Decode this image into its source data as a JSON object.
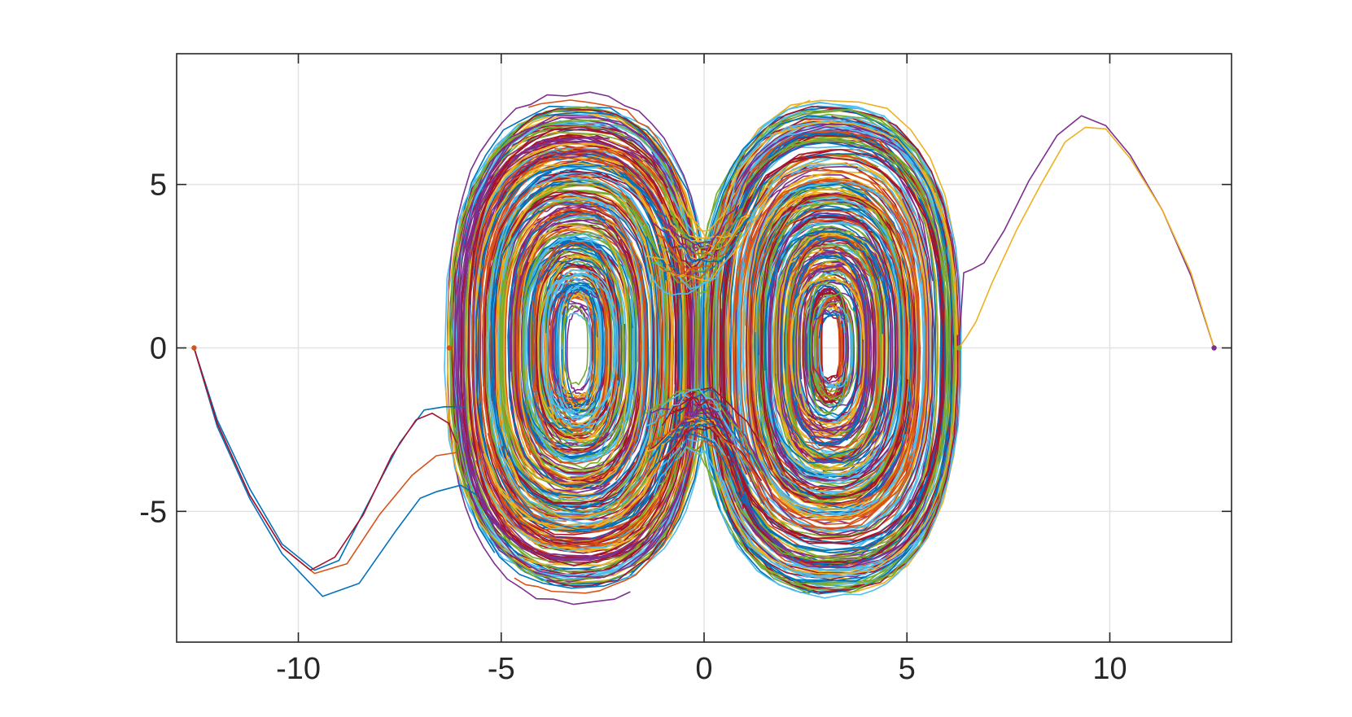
{
  "chart_data": {
    "type": "line",
    "title": "",
    "xlabel": "",
    "ylabel": "",
    "xlim": [
      -13,
      13
    ],
    "ylim": [
      -9,
      9
    ],
    "xticks": [
      -10,
      -5,
      0,
      5,
      10
    ],
    "yticks": [
      -5,
      0,
      5
    ],
    "xtick_labels": [
      "-10",
      "-5",
      "0",
      "5",
      "10"
    ],
    "ytick_labels": [
      "-5",
      "0",
      "5"
    ],
    "grid": true,
    "legend": "none",
    "colors": [
      "#0072BD",
      "#D95319",
      "#EDB120",
      "#7E2F8E",
      "#77AC30",
      "#4DBEEE",
      "#A2142F"
    ],
    "series": [
      {
        "color": "#7E2F8E",
        "x": [
          12.57,
          12.0,
          11.3,
          10.5,
          9.9,
          9.3,
          8.7,
          8.0,
          7.4,
          6.9,
          6.6,
          6.4,
          6.28
        ],
        "y": [
          0.0,
          2.2,
          4.2,
          5.9,
          6.8,
          7.1,
          6.5,
          5.1,
          3.6,
          2.6,
          2.4,
          2.3,
          0.0
        ]
      },
      {
        "color": "#EDB120",
        "x": [
          12.57,
          12.0,
          11.3,
          10.5,
          9.9,
          9.4,
          8.9,
          8.3,
          7.7,
          7.1,
          6.7,
          6.45,
          6.28
        ],
        "y": [
          0.0,
          2.3,
          4.2,
          5.8,
          6.7,
          6.75,
          6.3,
          5.0,
          3.6,
          2.0,
          0.8,
          0.3,
          0.0
        ]
      },
      {
        "color": "#0072BD",
        "x": [
          -12.57,
          -12.0,
          -11.2,
          -10.4,
          -9.4,
          -8.5,
          -7.6,
          -7.0,
          -6.6,
          -6.0,
          -5.6
        ],
        "y": [
          0.0,
          -2.4,
          -4.6,
          -6.3,
          -7.6,
          -7.2,
          -5.6,
          -4.6,
          -4.4,
          -4.2,
          -4.5
        ]
      },
      {
        "color": "#D95319",
        "x": [
          -12.57,
          -12.0,
          -11.2,
          -10.4,
          -9.6,
          -8.8,
          -8.0,
          -7.2,
          -6.6,
          -6.1
        ],
        "y": [
          0.0,
          -2.3,
          -4.5,
          -6.1,
          -6.9,
          -6.6,
          -5.1,
          -3.9,
          -3.3,
          -3.2
        ]
      },
      {
        "color": "#0072BD",
        "x": [
          -12.57,
          -12.0,
          -11.2,
          -10.4,
          -9.6,
          -9.0,
          -8.3,
          -7.5,
          -6.9,
          -6.4,
          -5.9
        ],
        "y": [
          0.0,
          -2.2,
          -4.3,
          -6.0,
          -6.8,
          -6.5,
          -4.8,
          -2.9,
          -1.9,
          -1.8,
          -1.8
        ]
      },
      {
        "color": "#A2142F",
        "x": [
          -12.57,
          -12.0,
          -11.2,
          -10.4,
          -9.7,
          -9.1,
          -8.4,
          -7.7,
          -7.1,
          -6.7,
          -6.3,
          -6.1
        ],
        "y": [
          0.0,
          -2.3,
          -4.5,
          -6.1,
          -6.8,
          -6.4,
          -5.1,
          -3.3,
          -2.2,
          -2.0,
          -2.3,
          -2.9
        ]
      }
    ],
    "start_points": [
      {
        "color": "#D95319",
        "x": -12.57,
        "y": 0
      },
      {
        "color": "#D95319",
        "x": -6.28,
        "y": 0
      },
      {
        "color": "#77AC30",
        "x": 6.28,
        "y": 0
      },
      {
        "color": "#7E2F8E",
        "x": 12.57,
        "y": 0
      }
    ],
    "bundles": [
      {
        "center_x": -3.14,
        "n_curves": 230,
        "note_ref": "left-separatrix-band"
      },
      {
        "center_x": 3.14,
        "n_curves": 230,
        "note_ref": "right-separatrix-band"
      }
    ]
  }
}
